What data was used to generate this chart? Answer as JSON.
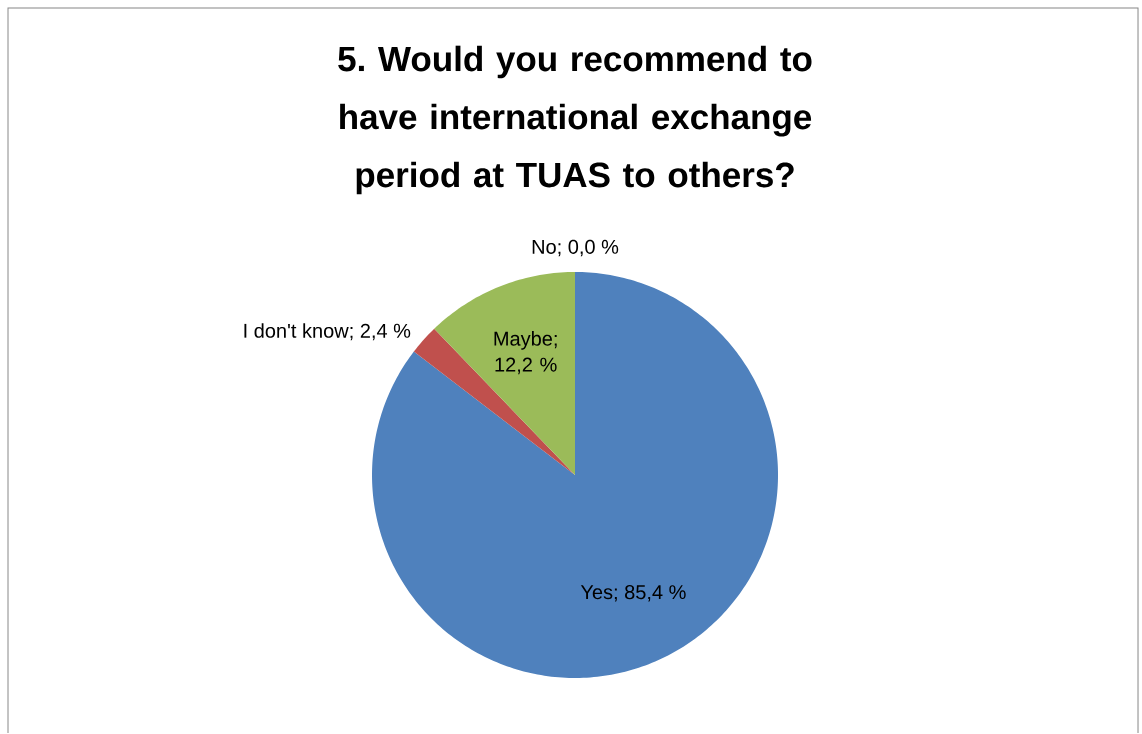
{
  "chart_data": {
    "type": "pie",
    "title": "5. Would you recommend to have international exchange period at TUAS to others?",
    "categories": [
      "Yes",
      "I don't know",
      "Maybe",
      "No"
    ],
    "values": [
      85.4,
      2.4,
      12.2,
      0.0
    ],
    "value_labels": [
      "; 85,4 %",
      "; 2,4 %",
      "; 12,2 %",
      "; 0,0 %"
    ],
    "colors": [
      "#4f81bd",
      "#c0504d",
      "#9bbb59",
      "#8064a2"
    ]
  }
}
